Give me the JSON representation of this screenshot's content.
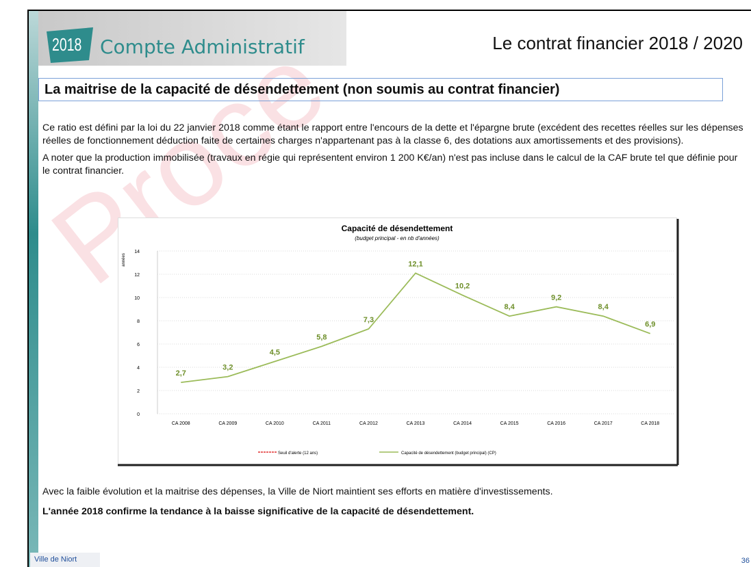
{
  "header": {
    "badge": "2018",
    "title": "Compte Administratif",
    "right_title": "Le contrat financier 2018 / 2020"
  },
  "watermark": "Proce",
  "section_title": "La maitrise de la capacité de désendettement (non soumis au contrat financier)",
  "paragraphs": [
    "Ce ratio est défini par la loi du 22 janvier 2018 comme étant le rapport entre l'encours de la dette et l'épargne brute (excédent des recettes réelles sur les dépenses réelles de fonctionnement déduction faite de certaines charges n'appartenant pas à la classe 6, des dotations aux amortissements et des provisions).",
    "A noter que la production immobilisée (travaux en régie qui représentent environ 1 200 K€/an) n'est pas incluse dans le calcul de la CAF brute tel que définie pour le contrat financier."
  ],
  "conclusion": "Avec la faible évolution et la maitrise des dépenses, la Ville de Niort maintient ses efforts en matière d'investissements.",
  "conclusion_bold": "L'année 2018 confirme la tendance à la baisse significative de la capacité de désendettement.",
  "footer": {
    "left": "Ville de Niort",
    "page": "36"
  },
  "chart_data": {
    "type": "line",
    "title": "Capacité de désendettement",
    "subtitle": "(budget principal - en nb d'années)",
    "y_label": "années",
    "categories": [
      "CA 2008",
      "CA 2009",
      "CA 2010",
      "CA 2011",
      "CA 2012",
      "CA 2013",
      "CA 2014",
      "CA 2015",
      "CA 2016",
      "CA 2017",
      "CA 2018"
    ],
    "series": [
      {
        "name": "Capacité de désendettement (budget principal) (CP)",
        "color": "#9bbb59",
        "values": [
          2.7,
          3.2,
          4.5,
          5.8,
          7.3,
          12.1,
          10.2,
          8.4,
          9.2,
          8.4,
          6.9
        ],
        "value_labels": [
          "2,7",
          "3,2",
          "4,5",
          "5,8",
          "7,3",
          "12,1",
          "10,2",
          "8,4",
          "9,2",
          "8,4",
          "6,9"
        ]
      }
    ],
    "alert_legend": {
      "name": "Seuil d'alerte (12 ans)",
      "color": "#e03030"
    },
    "ylim": [
      0,
      14
    ],
    "yticks": [
      0,
      2,
      4,
      6,
      8,
      10,
      12,
      14
    ],
    "grid": true
  }
}
